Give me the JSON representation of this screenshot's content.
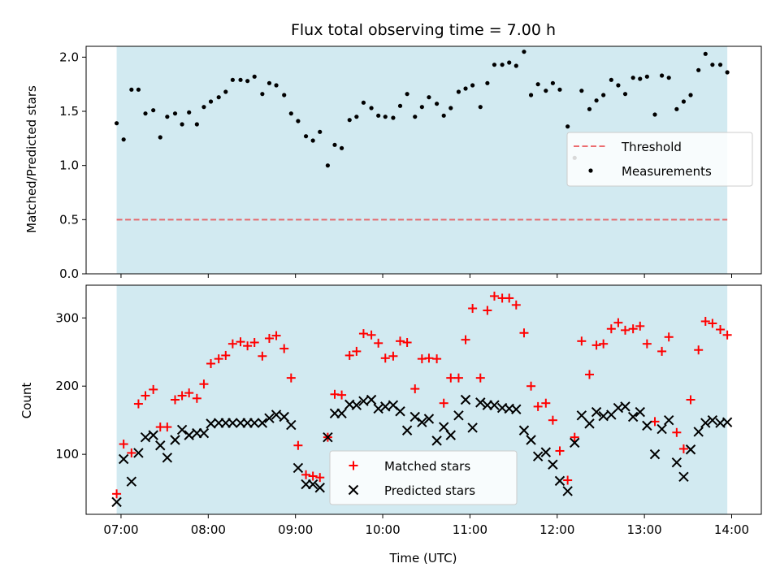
{
  "chart_data": [
    {
      "type": "scatter",
      "title": "Flux total observing time = 7.00 h",
      "xlabel": "",
      "ylabel": "Matched/Predicted stars",
      "ylim": [
        0,
        2.1
      ],
      "yticks": [
        "0.0",
        "0.5",
        "1.0",
        "1.5",
        "2.0"
      ],
      "xticks": [
        "07:00",
        "08:00",
        "09:00",
        "10:00",
        "11:00",
        "12:00",
        "13:00",
        "14:00"
      ],
      "x_unit": "hours UTC",
      "shaded_span": [
        6.95,
        13.95
      ],
      "shaded_color": "#add8e6",
      "threshold": {
        "name": "Threshold",
        "value": 0.5,
        "color": "#e8474b"
      },
      "measurements": {
        "name": "Measurements",
        "color": "#000000",
        "x": [
          6.95,
          7.03,
          7.12,
          7.2,
          7.28,
          7.37,
          7.45,
          7.53,
          7.62,
          7.7,
          7.78,
          7.87,
          7.95,
          8.03,
          8.12,
          8.2,
          8.28,
          8.37,
          8.45,
          8.53,
          8.62,
          8.7,
          8.78,
          8.87,
          8.95,
          9.03,
          9.12,
          9.2,
          9.28,
          9.37,
          9.45,
          9.53,
          9.62,
          9.7,
          9.78,
          9.87,
          9.95,
          10.03,
          10.12,
          10.2,
          10.28,
          10.37,
          10.45,
          10.53,
          10.62,
          10.7,
          10.78,
          10.87,
          10.95,
          11.03,
          11.12,
          11.2,
          11.28,
          11.37,
          11.45,
          11.53,
          11.62,
          11.7,
          11.78,
          11.87,
          11.95,
          12.03,
          12.12,
          12.2,
          12.28,
          12.37,
          12.45,
          12.53,
          12.62,
          12.7,
          12.78,
          12.87,
          12.95,
          13.03,
          13.12,
          13.2,
          13.28,
          13.37,
          13.45,
          13.53,
          13.62,
          13.7,
          13.78,
          13.87,
          13.95
        ],
        "y": [
          1.39,
          1.24,
          1.7,
          1.7,
          1.48,
          1.51,
          1.26,
          1.45,
          1.48,
          1.38,
          1.49,
          1.38,
          1.54,
          1.59,
          1.63,
          1.68,
          1.79,
          1.79,
          1.78,
          1.82,
          1.66,
          1.76,
          1.74,
          1.65,
          1.48,
          1.41,
          1.27,
          1.23,
          1.31,
          1.0,
          1.19,
          1.16,
          1.42,
          1.45,
          1.58,
          1.53,
          1.46,
          1.45,
          1.44,
          1.55,
          1.66,
          1.45,
          1.54,
          1.63,
          1.57,
          1.46,
          1.53,
          1.68,
          1.71,
          1.74,
          1.54,
          1.76,
          1.93,
          1.93,
          1.95,
          1.92,
          2.05,
          1.65,
          1.75,
          1.69,
          1.76,
          1.7,
          1.36,
          1.07,
          1.69,
          1.52,
          1.6,
          1.65,
          1.79,
          1.74,
          1.66,
          1.81,
          1.8,
          1.82,
          1.47,
          1.83,
          1.81,
          1.52,
          1.59,
          1.65,
          1.88,
          2.03,
          1.93,
          1.93,
          1.86
        ]
      }
    },
    {
      "type": "scatter",
      "title": "",
      "xlabel": "Time (UTC)",
      "ylabel": "Count",
      "ylim": [
        12,
        348
      ],
      "yticks": [
        "100",
        "200",
        "300"
      ],
      "xticks": [
        "07:00",
        "08:00",
        "09:00",
        "10:00",
        "11:00",
        "12:00",
        "13:00",
        "14:00"
      ],
      "x_unit": "hours UTC",
      "shaded_span": [
        6.95,
        13.95
      ],
      "shaded_color": "#add8e6",
      "series": [
        {
          "name": "Matched stars",
          "marker": "+",
          "color": "#ff0000",
          "x": [
            6.95,
            7.03,
            7.12,
            7.2,
            7.28,
            7.37,
            7.45,
            7.53,
            7.62,
            7.7,
            7.78,
            7.87,
            7.95,
            8.03,
            8.12,
            8.2,
            8.28,
            8.37,
            8.45,
            8.53,
            8.62,
            8.7,
            8.78,
            8.87,
            8.95,
            9.03,
            9.12,
            9.2,
            9.28,
            9.37,
            9.45,
            9.53,
            9.62,
            9.7,
            9.78,
            9.87,
            9.95,
            10.03,
            10.12,
            10.2,
            10.28,
            10.37,
            10.45,
            10.53,
            10.62,
            10.7,
            10.78,
            10.87,
            10.95,
            11.03,
            11.12,
            11.2,
            11.28,
            11.37,
            11.45,
            11.53,
            11.62,
            11.7,
            11.78,
            11.87,
            11.95,
            12.03,
            12.12,
            12.2,
            12.28,
            12.37,
            12.45,
            12.53,
            12.62,
            12.7,
            12.78,
            12.87,
            12.95,
            13.03,
            13.12,
            13.2,
            13.28,
            13.37,
            13.45,
            13.53,
            13.62,
            13.7,
            13.78,
            13.87,
            13.95
          ],
          "y": [
            42,
            115,
            102,
            174,
            186,
            195,
            140,
            140,
            180,
            186,
            190,
            182,
            203,
            233,
            240,
            245,
            262,
            265,
            259,
            264,
            244,
            270,
            274,
            255,
            212,
            113,
            70,
            68,
            66,
            125,
            188,
            187,
            245,
            251,
            277,
            275,
            263,
            241,
            244,
            266,
            264,
            196,
            240,
            241,
            240,
            175,
            212,
            212,
            268,
            314,
            212,
            311,
            332,
            329,
            329,
            319,
            278,
            200,
            170,
            175,
            150,
            105,
            62,
            125,
            266,
            217,
            260,
            262,
            284,
            293,
            282,
            284,
            288,
            262,
            148,
            251,
            272,
            132,
            108,
            180,
            253,
            295,
            292,
            283,
            275
          ]
        },
        {
          "name": "Predicted stars",
          "marker": "x",
          "color": "#000000",
          "x": [
            6.95,
            7.03,
            7.12,
            7.2,
            7.28,
            7.37,
            7.45,
            7.53,
            7.62,
            7.7,
            7.78,
            7.87,
            7.95,
            8.03,
            8.12,
            8.2,
            8.28,
            8.37,
            8.45,
            8.53,
            8.62,
            8.7,
            8.78,
            8.87,
            8.95,
            9.03,
            9.12,
            9.2,
            9.28,
            9.37,
            9.45,
            9.53,
            9.62,
            9.7,
            9.78,
            9.87,
            9.95,
            10.03,
            10.12,
            10.2,
            10.28,
            10.37,
            10.45,
            10.53,
            10.62,
            10.7,
            10.78,
            10.87,
            10.95,
            11.03,
            11.12,
            11.2,
            11.28,
            11.37,
            11.45,
            11.53,
            11.62,
            11.7,
            11.78,
            11.87,
            11.95,
            12.03,
            12.12,
            12.2,
            12.28,
            12.37,
            12.45,
            12.53,
            12.62,
            12.7,
            12.78,
            12.87,
            12.95,
            13.03,
            13.12,
            13.2,
            13.28,
            13.37,
            13.45,
            13.53,
            13.62,
            13.7,
            13.78,
            13.87,
            13.95
          ],
          "y": [
            30,
            93,
            60,
            102,
            125,
            128,
            113,
            95,
            121,
            136,
            128,
            131,
            131,
            145,
            146,
            146,
            146,
            146,
            146,
            146,
            146,
            153,
            158,
            155,
            143,
            80,
            56,
            56,
            51,
            125,
            160,
            160,
            173,
            172,
            178,
            180,
            167,
            170,
            172,
            163,
            135,
            155,
            147,
            152,
            120,
            140,
            128,
            157,
            180,
            139,
            176,
            172,
            172,
            168,
            167,
            166,
            135,
            121,
            97,
            103,
            85,
            61,
            46,
            117,
            157,
            145,
            162,
            156,
            158,
            168,
            170,
            155,
            162,
            142,
            100,
            137,
            150,
            88,
            67,
            107,
            133,
            146,
            150,
            146,
            147
          ]
        }
      ]
    }
  ]
}
